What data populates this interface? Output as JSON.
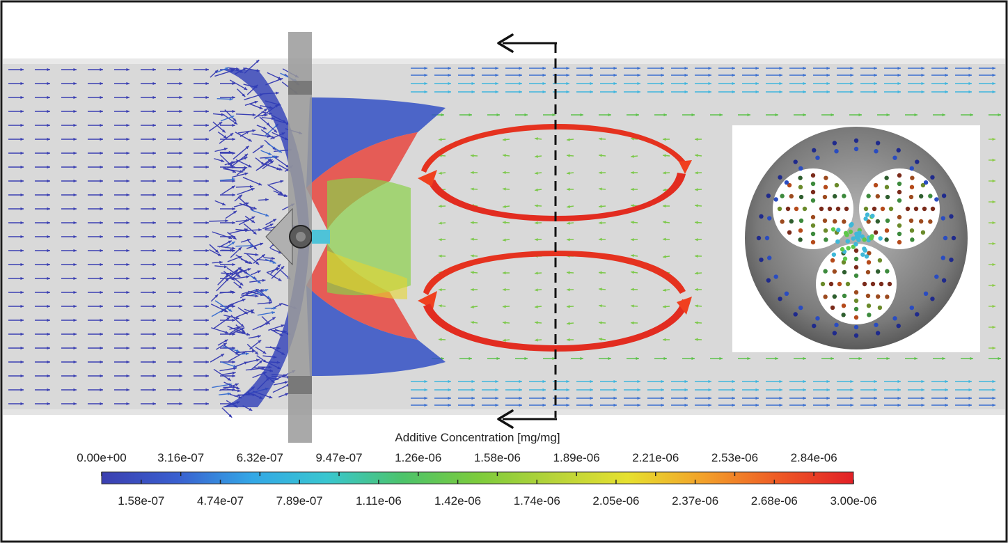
{
  "colorbar": {
    "title": "Additive Concentration [mg/mg]",
    "top_labels": [
      "0.00e+00",
      "3.16e-07",
      "6.32e-07",
      "9.47e-07",
      "1.26e-06",
      "1.58e-06",
      "1.89e-06",
      "2.21e-06",
      "2.53e-06",
      "2.84e-06"
    ],
    "bottom_labels": [
      "1.58e-07",
      "4.74e-07",
      "7.89e-07",
      "1.11e-06",
      "1.42e-06",
      "1.74e-06",
      "2.05e-06",
      "2.37e-06",
      "2.68e-06",
      "3.00e-06"
    ],
    "min": 0.0,
    "max": 3e-06,
    "colors": [
      "#3b3fb0",
      "#3a5fcf",
      "#33a7e6",
      "#39c6cf",
      "#4cc36b",
      "#7ccb3c",
      "#b6d33a",
      "#e6e02f",
      "#f2a12a",
      "#ee5a25",
      "#e21f26"
    ]
  },
  "scene": {
    "background": "#ffffff",
    "pipe_color": "#d8d8d8",
    "vortex_color": "#e3311f",
    "section_line_color": "#111111",
    "inset_disc_color": "#8a8a8a"
  }
}
